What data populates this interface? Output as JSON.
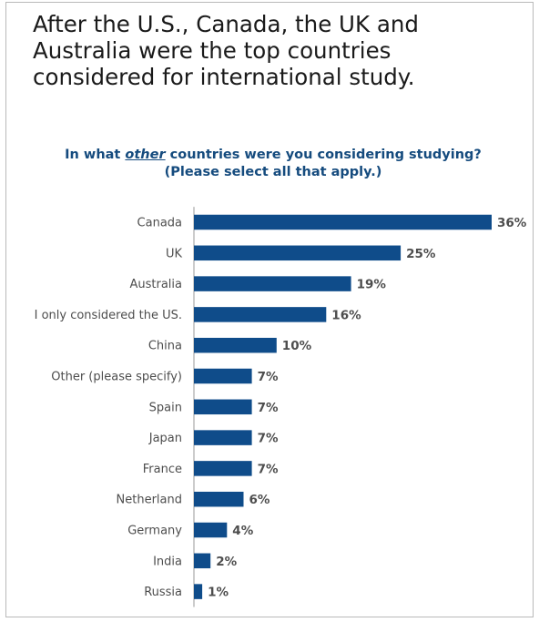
{
  "headline": "After the U.S., Canada, the UK and Australia were the top countries considered for international study.",
  "question": {
    "before": "In what ",
    "emphasis": "other",
    "after": " countries were you considering studying? (Please select all that apply.)"
  },
  "colors": {
    "bar": "#0f4c8a",
    "axis": "#9a9a9a",
    "question": "#154b7e"
  },
  "chart_data": {
    "type": "bar",
    "orientation": "horizontal",
    "categories": [
      "Canada",
      "UK",
      "Australia",
      "I only considered the US.",
      "China",
      "Other (please specify)",
      "Spain",
      "Japan",
      "France",
      "Netherland",
      "Germany",
      "India",
      "Russia"
    ],
    "values": [
      36,
      25,
      19,
      16,
      10,
      7,
      7,
      7,
      7,
      6,
      4,
      2,
      1
    ],
    "value_labels": [
      "36%",
      "25%",
      "19%",
      "16%",
      "10%",
      "7%",
      "7%",
      "7%",
      "7%",
      "6%",
      "4%",
      "2%",
      "1%"
    ],
    "title": "In what other countries were you considering studying? (Please select all that apply.)",
    "xlabel": "",
    "ylabel": "",
    "xlim": [
      0,
      36
    ],
    "grid": false
  }
}
